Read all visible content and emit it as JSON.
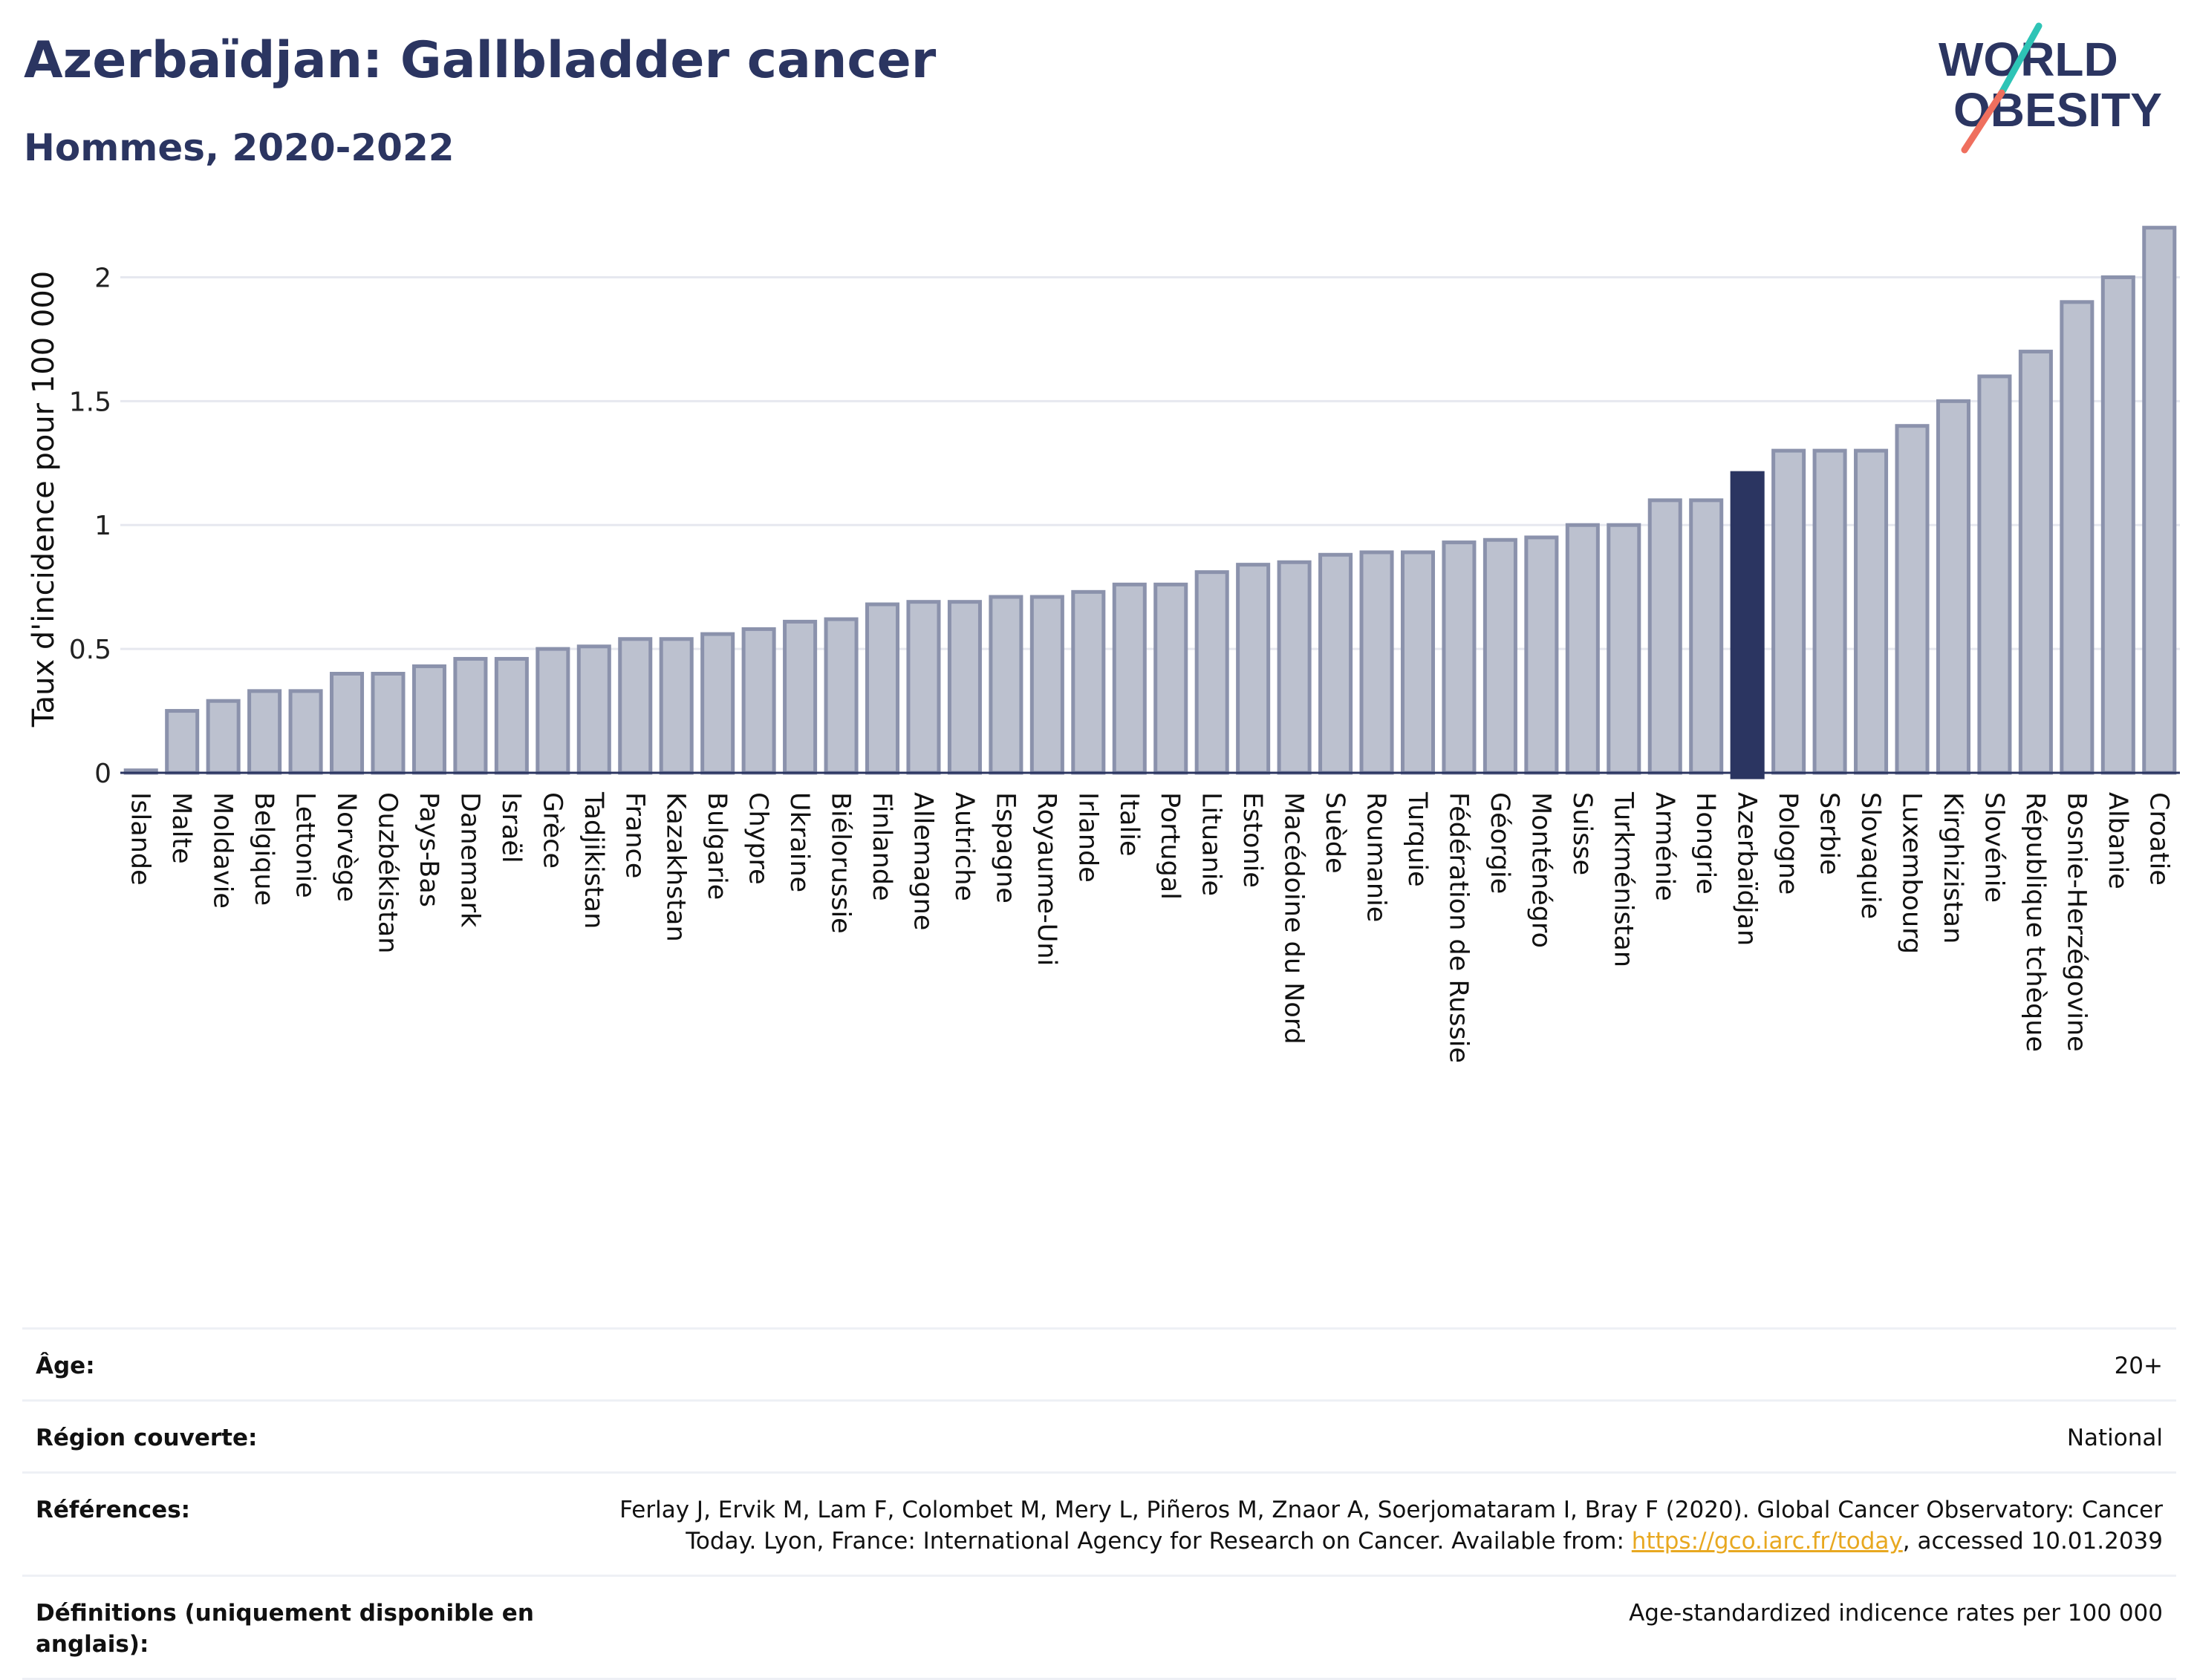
{
  "header": {
    "title": "Azerbaïdjan: Gallbladder cancer",
    "subtitle": "Hommes, 2020-2022"
  },
  "logo": {
    "line1": "WORLD",
    "line2": "OBESITY",
    "accent_colors": [
      "#2ec4b6",
      "#ef6f5e"
    ]
  },
  "chart_data": {
    "type": "bar",
    "ylabel": "Taux d'incidence pour 100 000",
    "xlabel": "",
    "ylim": [
      0,
      2.25
    ],
    "yticks": [
      0,
      0.5,
      1,
      1.5,
      2
    ],
    "ytick_labels": [
      "0",
      "0.5",
      "1",
      "1.5",
      "2"
    ],
    "grid": true,
    "highlight": "Azerbaïdjan",
    "colors": {
      "bar": "#bcc1cf",
      "bar_edge": "#8b92ac",
      "highlight": "#2b3561"
    },
    "categories": [
      "Islande",
      "Malte",
      "Moldavie",
      "Belgique",
      "Lettonie",
      "Norvège",
      "Ouzbékistan",
      "Pays-Bas",
      "Danemark",
      "Israël",
      "Grèce",
      "Tadjikistan",
      "France",
      "Kazakhstan",
      "Bulgarie",
      "Chypre",
      "Ukraine",
      "Biélorussie",
      "Finlande",
      "Allemagne",
      "Autriche",
      "Espagne",
      "Royaume-Uni",
      "Irlande",
      "Italie",
      "Portugal",
      "Lituanie",
      "Estonie",
      "Macédoine du Nord",
      "Suède",
      "Roumanie",
      "Turquie",
      "Fédération de Russie",
      "Géorgie",
      "Monténégro",
      "Suisse",
      "Turkménistan",
      "Arménie",
      "Hongrie",
      "Azerbaïdjan",
      "Pologne",
      "Serbie",
      "Slovaquie",
      "Luxembourg",
      "Kirghizistan",
      "Slovénie",
      "République tchèque",
      "Bosnie-Herzégovine",
      "Albanie",
      "Croatie"
    ],
    "values": [
      0.01,
      0.25,
      0.29,
      0.33,
      0.33,
      0.4,
      0.4,
      0.43,
      0.46,
      0.46,
      0.5,
      0.51,
      0.54,
      0.54,
      0.56,
      0.58,
      0.61,
      0.62,
      0.68,
      0.69,
      0.69,
      0.71,
      0.71,
      0.73,
      0.76,
      0.76,
      0.81,
      0.84,
      0.85,
      0.88,
      0.89,
      0.89,
      0.93,
      0.94,
      0.95,
      1.0,
      1.0,
      1.1,
      1.1,
      1.21,
      1.3,
      1.3,
      1.3,
      1.4,
      1.5,
      1.6,
      1.7,
      1.9,
      2.0,
      2.2
    ]
  },
  "info": {
    "rows": [
      {
        "label": "Âge:",
        "value": "20+"
      },
      {
        "label": "Région couverte:",
        "value": "National"
      },
      {
        "label": "Références:",
        "value": "Ferlay J, Ervik M, Lam F, Colombet M, Mery L, Piñeros M, Znaor A, Soerjomataram I, Bray F (2020). Global Cancer Observatory: Cancer Today. Lyon, France: International Agency for Research on Cancer. Available from: ",
        "link": "https://gco.iarc.fr/today",
        "suffix": ", accessed 10.01.2039"
      },
      {
        "label": "Définitions (uniquement disponible en anglais):",
        "value": "Age-standardized indicence rates per 100 000"
      }
    ]
  }
}
